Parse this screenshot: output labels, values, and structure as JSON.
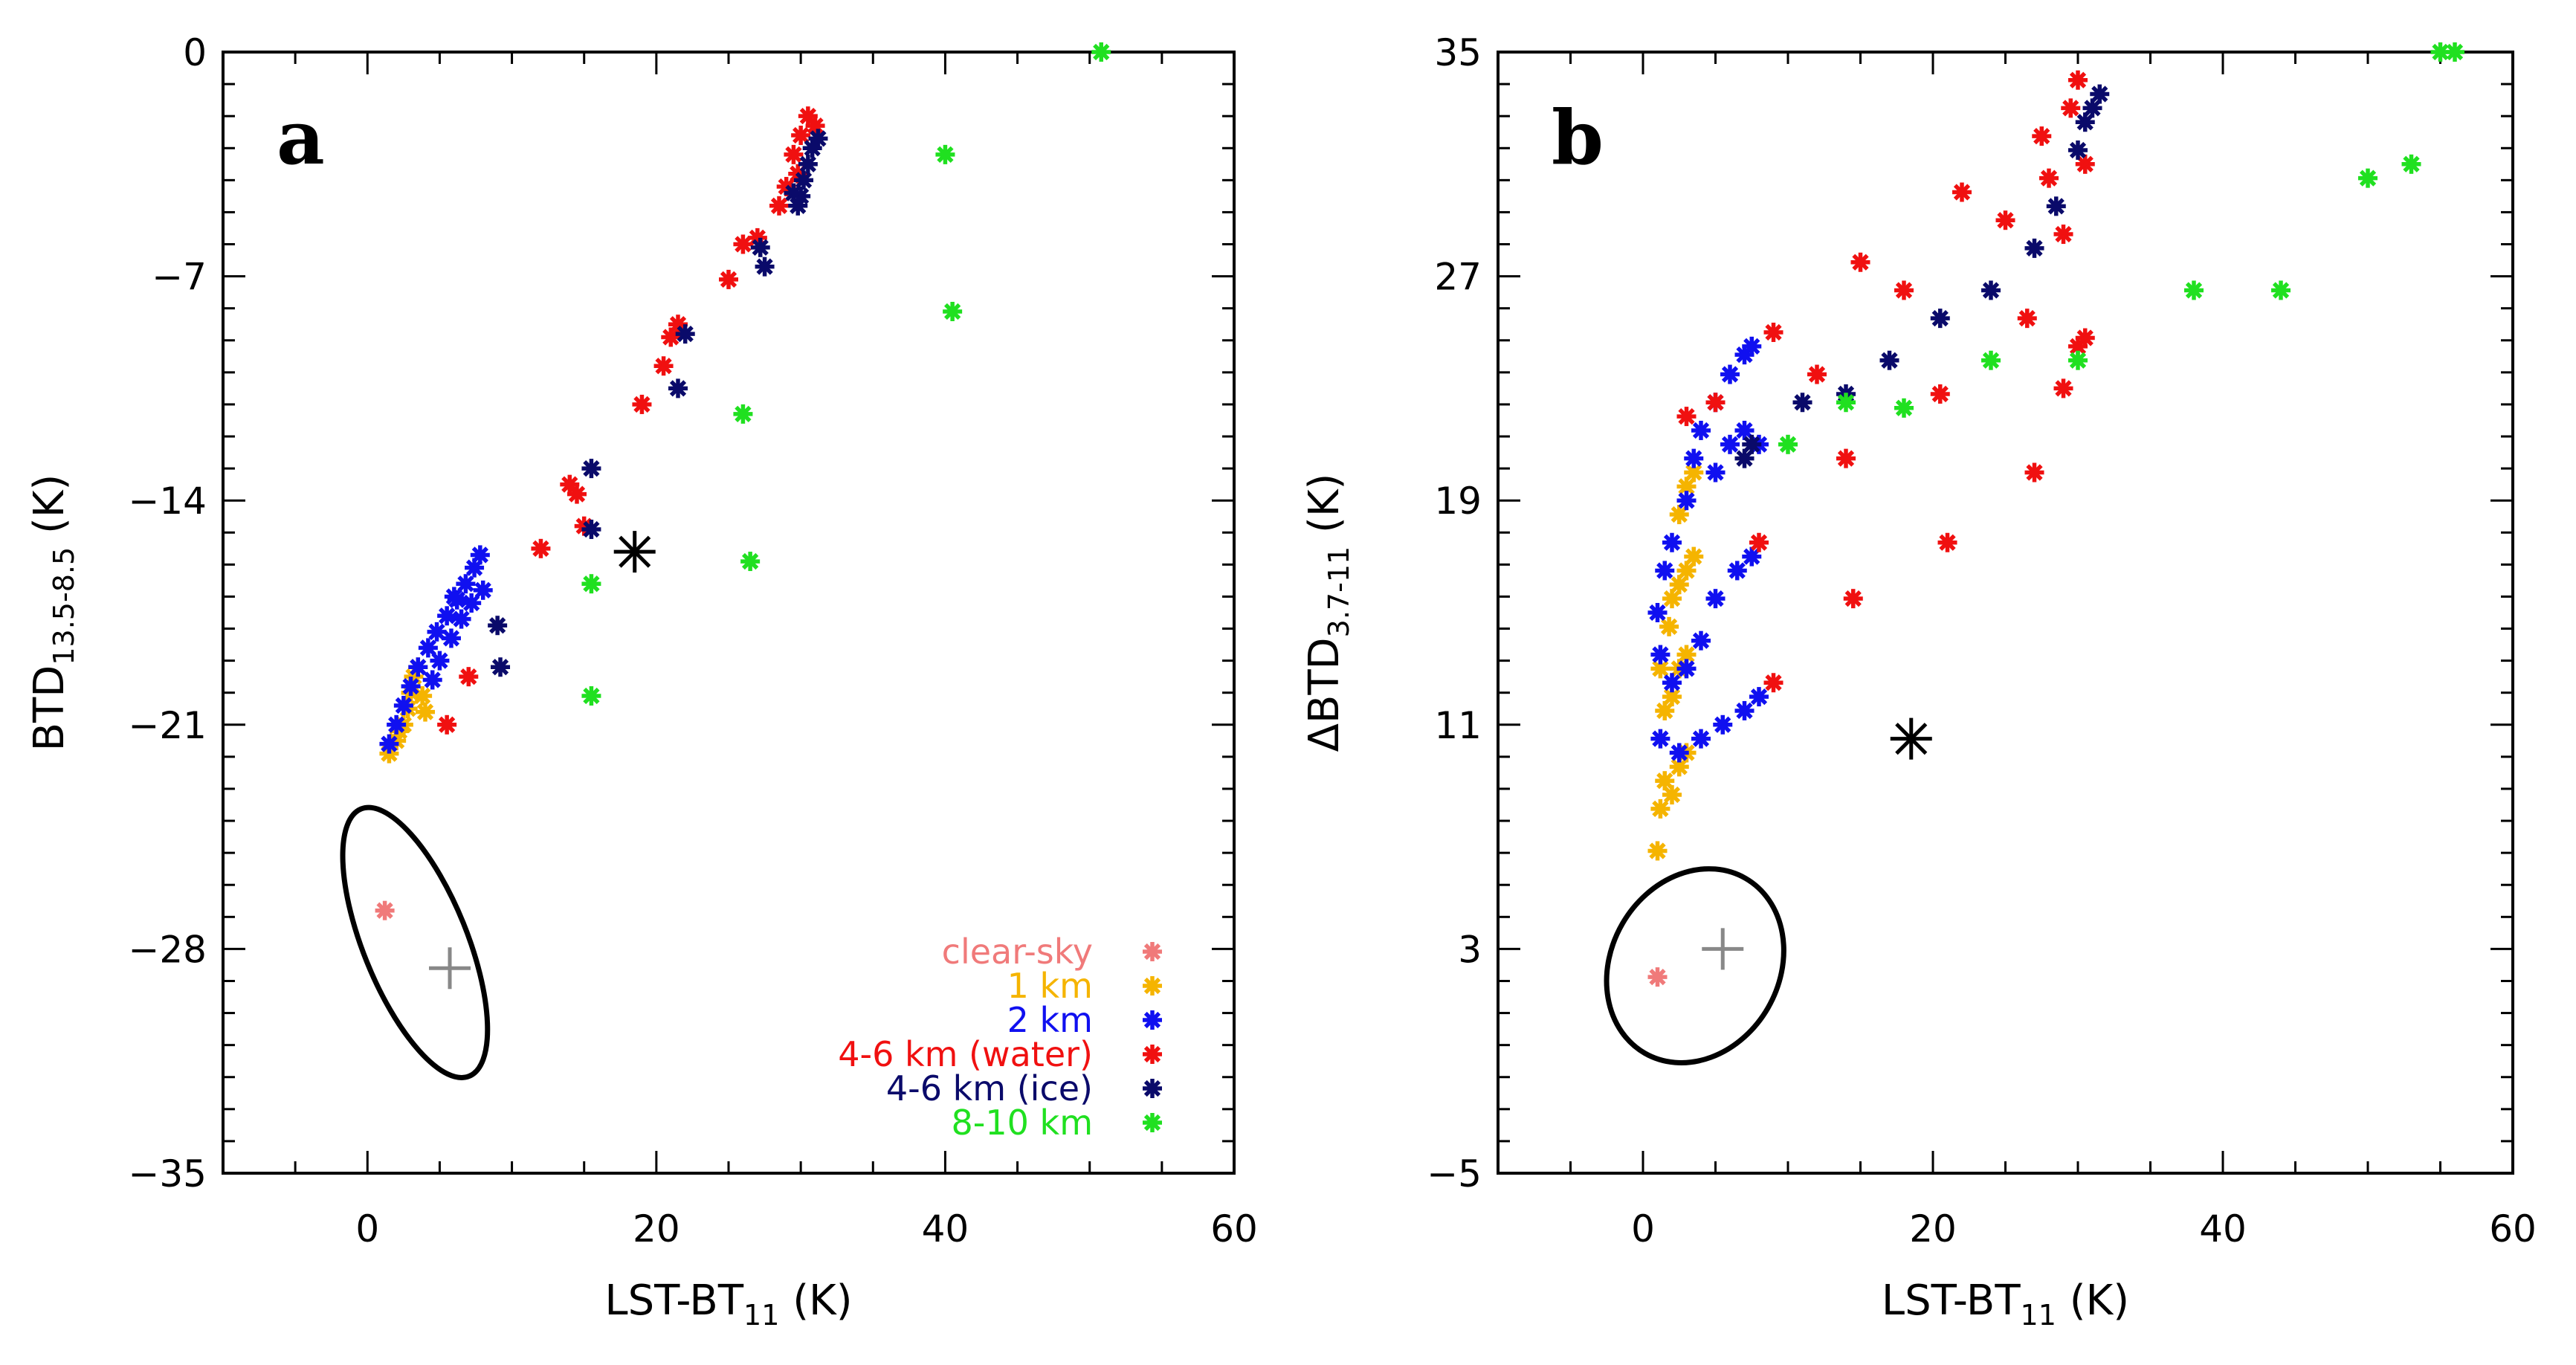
{
  "figure": {
    "panels": [
      "a",
      "b"
    ]
  },
  "legend": {
    "entries": [
      {
        "label": "clear-sky",
        "color": "#f07a7a",
        "marker": "asterisk"
      },
      {
        "label": "1 km",
        "color": "#f5b400",
        "marker": "asterisk"
      },
      {
        "label": "2 km",
        "color": "#1010f0",
        "marker": "asterisk"
      },
      {
        "label": "4-6 km (water)",
        "color": "#f01010",
        "marker": "asterisk"
      },
      {
        "label": "4-6 km (ice)",
        "color": "#0a0a6a",
        "marker": "asterisk"
      },
      {
        "label": "8-10 km",
        "color": "#20e020",
        "marker": "asterisk"
      }
    ]
  },
  "chart_data": [
    {
      "type": "scatter",
      "panel_label": "a",
      "xlabel": "LST-BT",
      "xlabel_sub": "11",
      "xlabel_unit": "(K)",
      "ylabel": "BTD",
      "ylabel_sub": "13.5-8.5",
      "ylabel_unit": "(K)",
      "xlim": [
        -10,
        60
      ],
      "ylim": [
        -35,
        0
      ],
      "xticks": [
        0,
        20,
        40,
        60
      ],
      "yticks": [
        -35,
        -28,
        -21,
        -14,
        -7,
        0
      ],
      "legend_position": "bottom-right",
      "markers": [
        {
          "name": "black-star",
          "x": 18.5,
          "y": -15.6
        },
        {
          "name": "grey-plus",
          "x": 5.7,
          "y": -28.6
        }
      ],
      "ellipse": {
        "cx": 3.3,
        "cy": -27.8,
        "rx": 3.6,
        "ry": 4.5,
        "angle": -22
      },
      "series": [
        {
          "name": "clear-sky",
          "points": [
            [
              1.2,
              -26.8
            ]
          ]
        },
        {
          "name": "1 km",
          "points": [
            [
              1.5,
              -21.9
            ],
            [
              2.0,
              -21.5
            ],
            [
              2.5,
              -21.0
            ],
            [
              2.8,
              -20.5
            ],
            [
              3.0,
              -20.0
            ],
            [
              3.2,
              -19.5
            ],
            [
              3.5,
              -19.2
            ],
            [
              4.0,
              -20.6
            ],
            [
              3.8,
              -20.1
            ],
            [
              2.2,
              -21.2
            ]
          ]
        },
        {
          "name": "2 km",
          "points": [
            [
              1.5,
              -21.6
            ],
            [
              2.0,
              -21.0
            ],
            [
              2.5,
              -20.4
            ],
            [
              3.0,
              -19.8
            ],
            [
              3.5,
              -19.2
            ],
            [
              4.2,
              -18.6
            ],
            [
              4.8,
              -18.1
            ],
            [
              5.5,
              -17.6
            ],
            [
              6.2,
              -17.1
            ],
            [
              6.8,
              -16.6
            ],
            [
              7.4,
              -16.1
            ],
            [
              7.8,
              -15.7
            ],
            [
              5.0,
              -19.0
            ],
            [
              5.8,
              -18.3
            ],
            [
              6.5,
              -17.7
            ],
            [
              7.2,
              -17.2
            ],
            [
              8.0,
              -16.8
            ],
            [
              4.5,
              -19.6
            ],
            [
              6.0,
              -17.0
            ]
          ]
        },
        {
          "name": "4-6 km (water)",
          "points": [
            [
              7.0,
              -19.5
            ],
            [
              5.5,
              -21.0
            ],
            [
              12.0,
              -15.5
            ],
            [
              14.0,
              -13.5
            ],
            [
              14.5,
              -13.8
            ],
            [
              15.0,
              -14.8
            ],
            [
              19.0,
              -11.0
            ],
            [
              20.5,
              -9.8
            ],
            [
              21.0,
              -8.9
            ],
            [
              21.5,
              -8.5
            ],
            [
              25.0,
              -7.1
            ],
            [
              26.0,
              -6.0
            ],
            [
              27.0,
              -5.8
            ],
            [
              28.5,
              -4.8
            ],
            [
              29.0,
              -4.2
            ],
            [
              29.5,
              -3.2
            ],
            [
              30.0,
              -2.6
            ],
            [
              30.5,
              -2.0
            ],
            [
              29.8,
              -3.8
            ],
            [
              31.0,
              -2.3
            ]
          ]
        },
        {
          "name": "4-6 km (ice)",
          "points": [
            [
              15.5,
              -13.0
            ],
            [
              15.5,
              -14.9
            ],
            [
              21.5,
              -10.5
            ],
            [
              22.0,
              -8.8
            ],
            [
              9.0,
              -17.9
            ],
            [
              9.2,
              -19.2
            ],
            [
              27.2,
              -6.1
            ],
            [
              27.5,
              -6.7
            ],
            [
              29.5,
              -4.4
            ],
            [
              30.0,
              -4.5
            ],
            [
              30.5,
              -3.5
            ],
            [
              30.8,
              -3.0
            ],
            [
              31.2,
              -2.7
            ],
            [
              30.2,
              -4.0
            ],
            [
              29.8,
              -4.8
            ]
          ]
        },
        {
          "name": "8-10 km",
          "points": [
            [
              40.0,
              -3.2
            ],
            [
              40.5,
              -8.1
            ],
            [
              26.0,
              -11.3
            ],
            [
              26.5,
              -15.9
            ],
            [
              15.5,
              -16.6
            ],
            [
              15.5,
              -20.1
            ],
            [
              50.8,
              0.0
            ]
          ]
        }
      ]
    },
    {
      "type": "scatter",
      "panel_label": "b",
      "xlabel": "LST-BT",
      "xlabel_sub": "11",
      "xlabel_unit": "(K)",
      "ylabel": "ΔBTD",
      "ylabel_sub": "3.7-11",
      "ylabel_unit": "(K)",
      "xlim": [
        -10,
        60
      ],
      "ylim": [
        -5,
        35
      ],
      "xticks": [
        0,
        20,
        40,
        60
      ],
      "yticks": [
        -5,
        3,
        11,
        19,
        27,
        35
      ],
      "markers": [
        {
          "name": "black-star",
          "x": 18.5,
          "y": 10.5
        },
        {
          "name": "grey-plus",
          "x": 5.5,
          "y": 3.0
        }
      ],
      "ellipse": {
        "cx": 3.6,
        "cy": 2.4,
        "rx": 5.8,
        "ry": 3.6,
        "angle": 30
      },
      "series": [
        {
          "name": "clear-sky",
          "points": [
            [
              1.0,
              2.0
            ]
          ]
        },
        {
          "name": "1 km",
          "points": [
            [
              1.0,
              6.5
            ],
            [
              1.2,
              8.0
            ],
            [
              1.5,
              9.0
            ],
            [
              2.0,
              8.5
            ],
            [
              2.5,
              9.5
            ],
            [
              3.0,
              10.0
            ],
            [
              1.5,
              11.5
            ],
            [
              2.0,
              12.0
            ],
            [
              2.5,
              13.0
            ],
            [
              3.0,
              13.5
            ],
            [
              2.0,
              15.5
            ],
            [
              2.5,
              16.0
            ],
            [
              3.0,
              16.5
            ],
            [
              3.5,
              17.0
            ],
            [
              2.5,
              18.5
            ],
            [
              3.0,
              19.5
            ],
            [
              3.5,
              20.0
            ],
            [
              1.2,
              13.0
            ],
            [
              1.8,
              14.5
            ]
          ]
        },
        {
          "name": "2 km",
          "points": [
            [
              1.0,
              15.0
            ],
            [
              1.5,
              16.5
            ],
            [
              2.0,
              17.5
            ],
            [
              3.0,
              19.0
            ],
            [
              3.5,
              20.5
            ],
            [
              4.0,
              21.5
            ],
            [
              5.0,
              22.5
            ],
            [
              6.0,
              23.5
            ],
            [
              7.0,
              24.2
            ],
            [
              7.5,
              24.5
            ],
            [
              1.2,
              13.5
            ],
            [
              2.0,
              12.5
            ],
            [
              3.0,
              13.0
            ],
            [
              4.0,
              14.0
            ],
            [
              5.0,
              15.5
            ],
            [
              6.5,
              16.5
            ],
            [
              7.5,
              17.0
            ],
            [
              1.2,
              10.5
            ],
            [
              2.5,
              10.0
            ],
            [
              4.0,
              10.5
            ],
            [
              5.5,
              11.0
            ],
            [
              7.0,
              11.5
            ],
            [
              8.0,
              12.0
            ],
            [
              5.0,
              20.0
            ],
            [
              6.0,
              21.0
            ],
            [
              7.0,
              21.5
            ],
            [
              8.0,
              21.0
            ]
          ]
        },
        {
          "name": "4-6 km (water)",
          "points": [
            [
              3.0,
              22.0
            ],
            [
              5.0,
              22.5
            ],
            [
              9.0,
              25.0
            ],
            [
              12.0,
              23.5
            ],
            [
              14.0,
              20.5
            ],
            [
              14.5,
              15.5
            ],
            [
              15.0,
              27.5
            ],
            [
              18.0,
              26.5
            ],
            [
              20.5,
              22.8
            ],
            [
              21.0,
              17.5
            ],
            [
              22.0,
              30.0
            ],
            [
              25.0,
              29.0
            ],
            [
              26.5,
              25.5
            ],
            [
              27.0,
              20.0
            ],
            [
              27.5,
              32.0
            ],
            [
              28.0,
              30.5
            ],
            [
              29.5,
              33.0
            ],
            [
              30.0,
              34.0
            ],
            [
              30.5,
              31.0
            ],
            [
              29.0,
              28.5
            ],
            [
              30.0,
              24.5
            ],
            [
              30.5,
              24.8
            ],
            [
              29.0,
              23.0
            ],
            [
              8.0,
              17.5
            ],
            [
              9.0,
              12.5
            ]
          ]
        },
        {
          "name": "4-6 km (ice)",
          "points": [
            [
              7.0,
              20.5
            ],
            [
              7.5,
              21.0
            ],
            [
              11.0,
              22.5
            ],
            [
              14.0,
              22.8
            ],
            [
              17.0,
              24.0
            ],
            [
              20.5,
              25.5
            ],
            [
              24.0,
              26.5
            ],
            [
              27.0,
              28.0
            ],
            [
              28.5,
              29.5
            ],
            [
              30.0,
              31.5
            ],
            [
              30.5,
              32.5
            ],
            [
              31.0,
              33.0
            ],
            [
              31.5,
              33.5
            ]
          ]
        },
        {
          "name": "8-10 km",
          "points": [
            [
              10.0,
              21.0
            ],
            [
              14.0,
              22.5
            ],
            [
              18.0,
              22.3
            ],
            [
              24.0,
              24.0
            ],
            [
              30.0,
              24.0
            ],
            [
              38.0,
              26.5
            ],
            [
              44.0,
              26.5
            ],
            [
              50.0,
              30.5
            ],
            [
              53.0,
              31.0
            ],
            [
              55.0,
              35.0
            ],
            [
              56.0,
              35.0
            ]
          ]
        }
      ]
    }
  ]
}
